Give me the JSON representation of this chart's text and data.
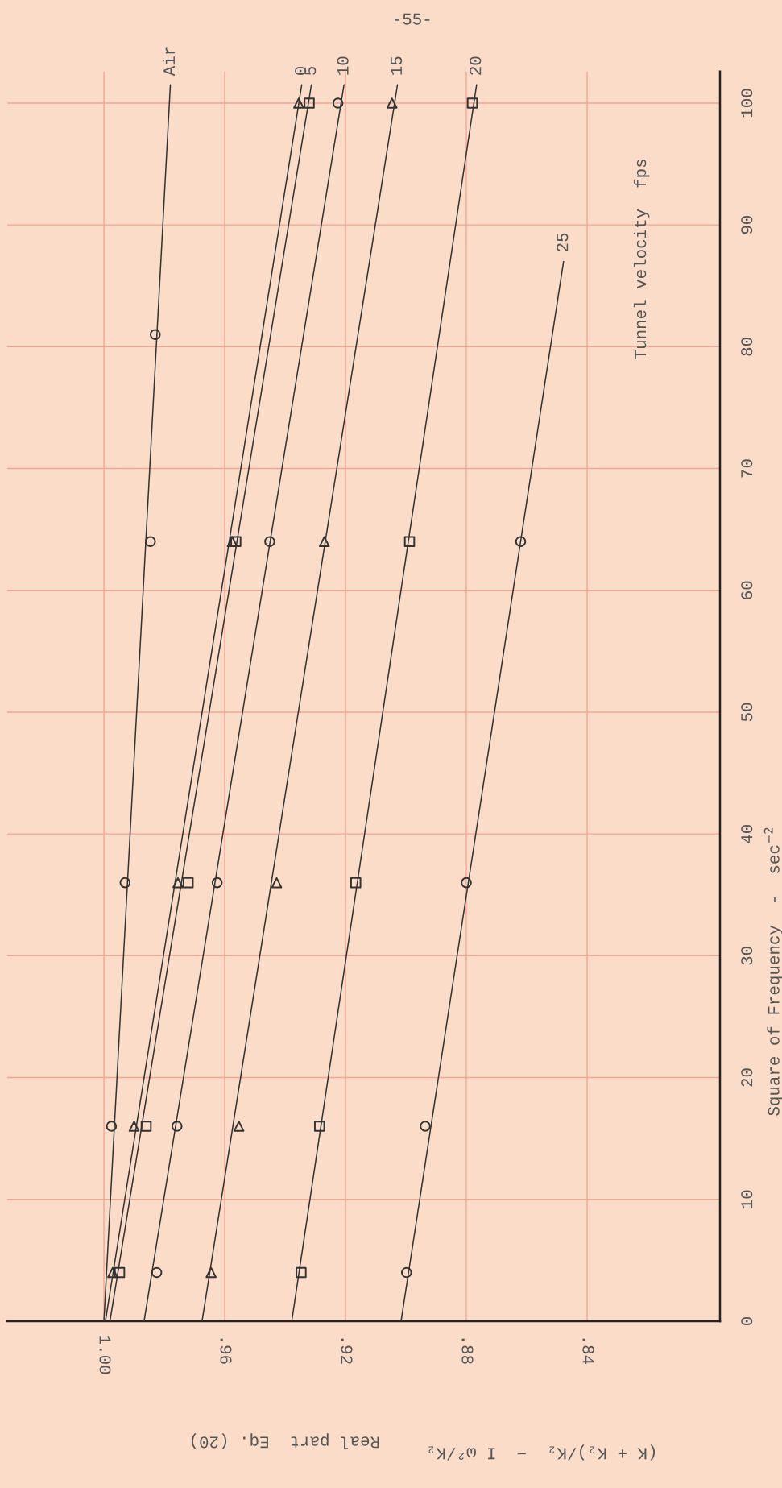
{
  "chart_data": {
    "type": "scatter",
    "xlabel": "Real part  Eq. (20)",
    "ylabel": "Square of Frequency  -  sec$^{−2}$",
    "annotations": [
      "(K + K₂)/K₂  −  I ω²/K₂",
      "Tunnel velocity  fps",
      "-55-"
    ],
    "xlim": [
      1.032,
      0.796
    ],
    "xticks": [
      {
        "value": 1.0,
        "label": "1.00"
      },
      {
        "value": 0.96,
        "label": ".96"
      },
      {
        "value": 0.92,
        "label": ".92"
      },
      {
        "value": 0.88,
        "label": ".88"
      },
      {
        "value": 0.84,
        "label": ".84"
      }
    ],
    "ylim": [
      0,
      102.6
    ],
    "yticks": [
      0,
      10,
      20,
      30,
      40,
      50,
      60,
      70,
      80,
      90,
      100
    ],
    "grid": true,
    "series": [
      {
        "marker": "circle",
        "color": "#333333",
        "x": [
          0.9975,
          0.993,
          0.9846,
          0.983
        ],
        "values": [
          16,
          36,
          64,
          81
        ]
      },
      {
        "type": "line",
        "name": "Air",
        "color": "#333333",
        "x": [
          1.0,
          0.978
        ],
        "values": [
          0,
          101.5
        ]
      },
      {
        "marker": "triangle",
        "color": "#333333",
        "x": [
          0.9971,
          0.99,
          0.9755,
          0.9575,
          0.9355
        ],
        "values": [
          4,
          16,
          36,
          64,
          100
        ]
      },
      {
        "type": "line",
        "name": "0",
        "color": "#333333",
        "x": [
          0.9995,
          0.9345
        ],
        "values": [
          0,
          101.5
        ]
      },
      {
        "marker": "square",
        "color": "#333333",
        "x": [
          0.9948,
          0.986,
          0.9721,
          0.9563,
          0.932
        ],
        "values": [
          4,
          16,
          36,
          64,
          100
        ]
      },
      {
        "type": "line",
        "name": "5",
        "color": "#333333",
        "x": [
          0.998,
          0.9313
        ],
        "values": [
          0,
          101.5
        ]
      },
      {
        "marker": "circle",
        "color": "#333333",
        "x": [
          0.9825,
          0.9758,
          0.9625,
          0.9451,
          0.9225
        ],
        "values": [
          4,
          16,
          36,
          64,
          100
        ]
      },
      {
        "type": "line",
        "name": "10",
        "color": "#333333",
        "x": [
          0.9867,
          0.9205
        ],
        "values": [
          0,
          101.5
        ]
      },
      {
        "marker": "triangle",
        "color": "#333333",
        "x": [
          0.9645,
          0.9553,
          0.9428,
          0.927,
          0.9046
        ],
        "values": [
          4,
          16,
          36,
          64,
          100
        ]
      },
      {
        "type": "line",
        "name": "15",
        "color": "#333333",
        "x": [
          0.9675,
          0.9028
        ],
        "values": [
          0,
          101.5
        ]
      },
      {
        "marker": "square",
        "color": "#333333",
        "x": [
          0.9347,
          0.9286,
          0.9166,
          0.8988,
          0.878
        ],
        "values": [
          4,
          16,
          36,
          64,
          100
        ]
      },
      {
        "type": "line",
        "name": "20",
        "color": "#333333",
        "x": [
          0.9378,
          0.8766
        ],
        "values": [
          0,
          101.5
        ]
      },
      {
        "marker": "circle",
        "color": "#333333",
        "x": [
          0.8998,
          0.8936,
          0.88,
          0.862
        ],
        "values": [
          4,
          16,
          36,
          64
        ]
      },
      {
        "type": "line",
        "name": "25",
        "color": "#333333",
        "x": [
          0.9016,
          0.8478
        ],
        "values": [
          0,
          87
        ]
      }
    ]
  }
}
